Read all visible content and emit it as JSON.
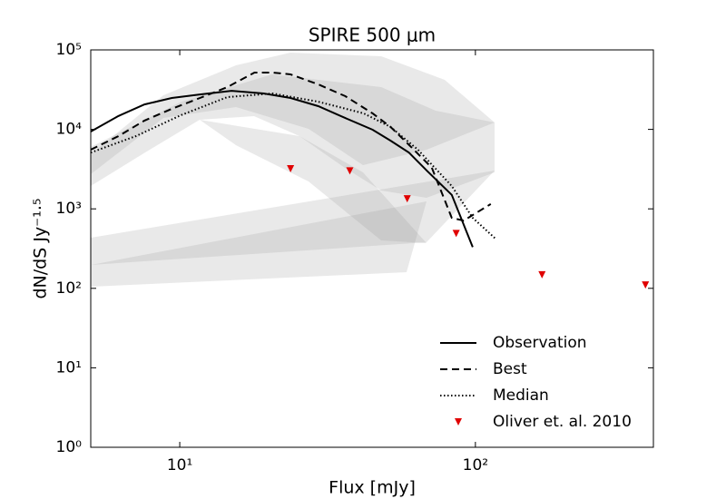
{
  "chart_data": {
    "type": "line",
    "title": "SPIRE 500 μm",
    "xlabel": "Flux [mJy]",
    "ylabel": "dN/dS Jy⁻¹·⁵",
    "xscale": "log",
    "yscale": "log",
    "xlim": [
      5,
      400
    ],
    "ylim": [
      1,
      100000
    ],
    "xticks": [
      {
        "value": 10,
        "label": "10¹"
      },
      {
        "value": 100,
        "label": "10²"
      }
    ],
    "yticks": [
      {
        "value": 1,
        "label": "10⁰"
      },
      {
        "value": 10,
        "label": "10¹"
      },
      {
        "value": 100,
        "label": "10²"
      },
      {
        "value": 1000,
        "label": "10³"
      },
      {
        "value": 10000,
        "label": "10⁴"
      },
      {
        "value": 100000,
        "label": "10⁵"
      }
    ],
    "legend": "lower right",
    "series": [
      {
        "name": "Observation",
        "color": "#000000",
        "style": "solid",
        "x": [
          5.0,
          6.2,
          7.6,
          9.4,
          11.7,
          15.0,
          19.2,
          23.7,
          29.4,
          36.3,
          44.9,
          51.7,
          59.6,
          68.7,
          83.2,
          97.9
        ],
        "values": [
          9400,
          14700,
          20600,
          24800,
          27500,
          30600,
          28300,
          24800,
          19600,
          13900,
          9900,
          7200,
          5100,
          3000,
          1500,
          330
        ]
      },
      {
        "name": "Best",
        "color": "#000000",
        "style": "dashed",
        "x": [
          5.0,
          6.2,
          7.6,
          9.4,
          11.7,
          14.5,
          17.9,
          20.6,
          23.7,
          29.4,
          36.3,
          44.9,
          51.7,
          59.6,
          71.2,
          83.2,
          91.2,
          112.7
        ],
        "values": [
          5550,
          8200,
          12900,
          18100,
          24800,
          34000,
          51800,
          51800,
          49200,
          36800,
          26200,
          15900,
          10700,
          6400,
          3300,
          770,
          710,
          1150
        ]
      },
      {
        "name": "Median",
        "color": "#000000",
        "style": "dotted",
        "x": [
          5.0,
          7.1,
          10.1,
          14.5,
          20.6,
          29.4,
          41.9,
          51.7,
          63.9,
          83.2,
          97.9,
          117
        ],
        "values": [
          5100,
          8200,
          15100,
          25500,
          28300,
          22300,
          15900,
          10700,
          5550,
          1940,
          770,
          420
        ]
      },
      {
        "name": "Oliver et. al. 2010",
        "color": "#e00000",
        "style": "marker",
        "x": [
          23.7,
          37.6,
          58.8,
          86.1,
          168,
          376
        ],
        "values": [
          3200,
          3000,
          1340,
          490,
          148,
          110
        ]
      }
    ]
  }
}
